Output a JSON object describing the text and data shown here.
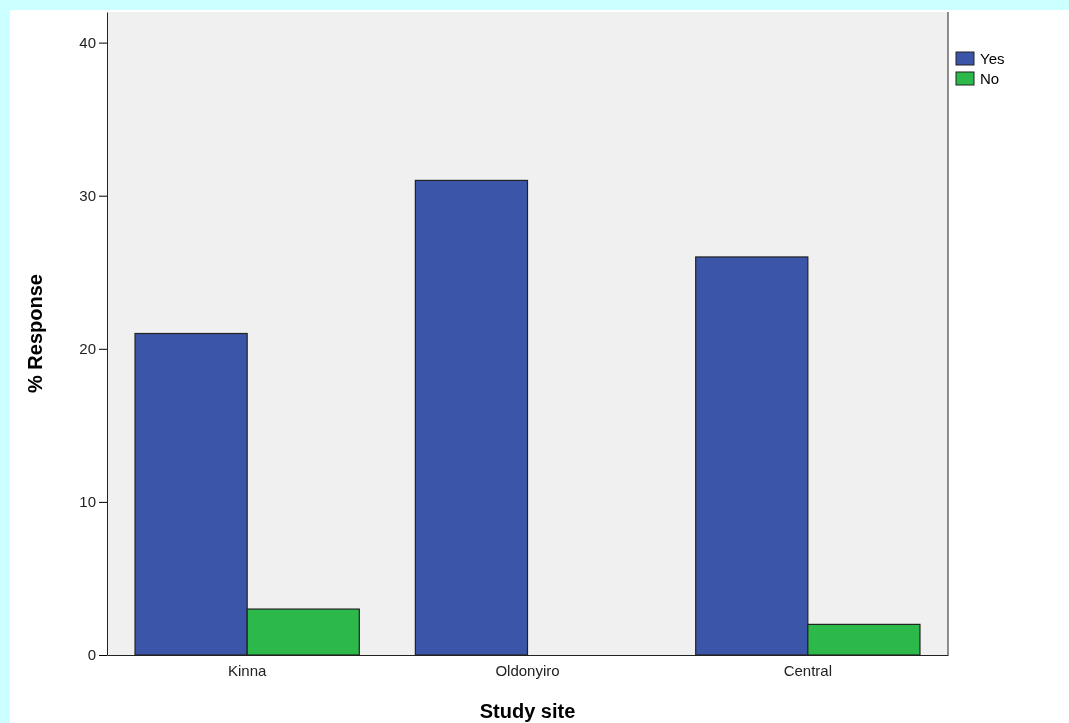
{
  "chart_data": {
    "type": "bar",
    "xlabel": "Study site",
    "ylabel": "% Response",
    "categories": [
      "Kinna",
      "Oldonyiro",
      "Central"
    ],
    "series": [
      {
        "name": "Yes",
        "color": "#3b56a8",
        "values": [
          21,
          31,
          26
        ]
      },
      {
        "name": "No",
        "color": "#2db84a",
        "values": [
          3,
          0,
          2
        ]
      }
    ],
    "ylim": [
      0,
      42
    ],
    "yticks": [
      0,
      10,
      20,
      30,
      40
    ],
    "grid": false,
    "legend": "top right"
  }
}
